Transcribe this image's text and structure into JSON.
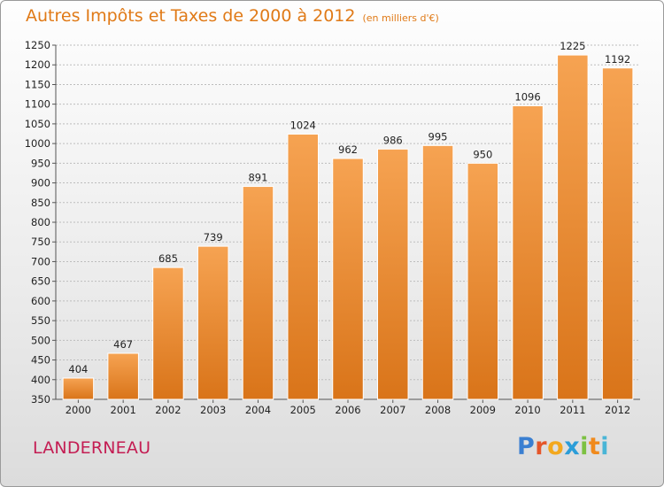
{
  "title": "Autres Impôts et Taxes de 2000 à 2012",
  "unit": "(en milliers d'€)",
  "city": "LANDERNEAU",
  "logo": {
    "letters": [
      "P",
      "r",
      "o",
      "x",
      "i",
      "t",
      "i"
    ]
  },
  "colors": {
    "bar_top": "#f6a352",
    "bar_bottom": "#d97419",
    "title": "#e07a17",
    "city": "#c41d53"
  },
  "chart_data": {
    "type": "bar",
    "title": "Autres Impôts et Taxes de 2000 à 2012",
    "xlabel": "",
    "ylabel": "",
    "ylim": [
      350,
      1250
    ],
    "yticks": [
      350,
      400,
      450,
      500,
      550,
      600,
      650,
      700,
      750,
      800,
      850,
      900,
      950,
      1000,
      1050,
      1100,
      1150,
      1200,
      1250
    ],
    "grid": true,
    "categories": [
      "2000",
      "2001",
      "2002",
      "2003",
      "2004",
      "2005",
      "2006",
      "2007",
      "2008",
      "2009",
      "2010",
      "2011",
      "2012"
    ],
    "values": [
      404,
      467,
      685,
      739,
      891,
      1024,
      962,
      986,
      995,
      950,
      1096,
      1225,
      1192
    ]
  }
}
